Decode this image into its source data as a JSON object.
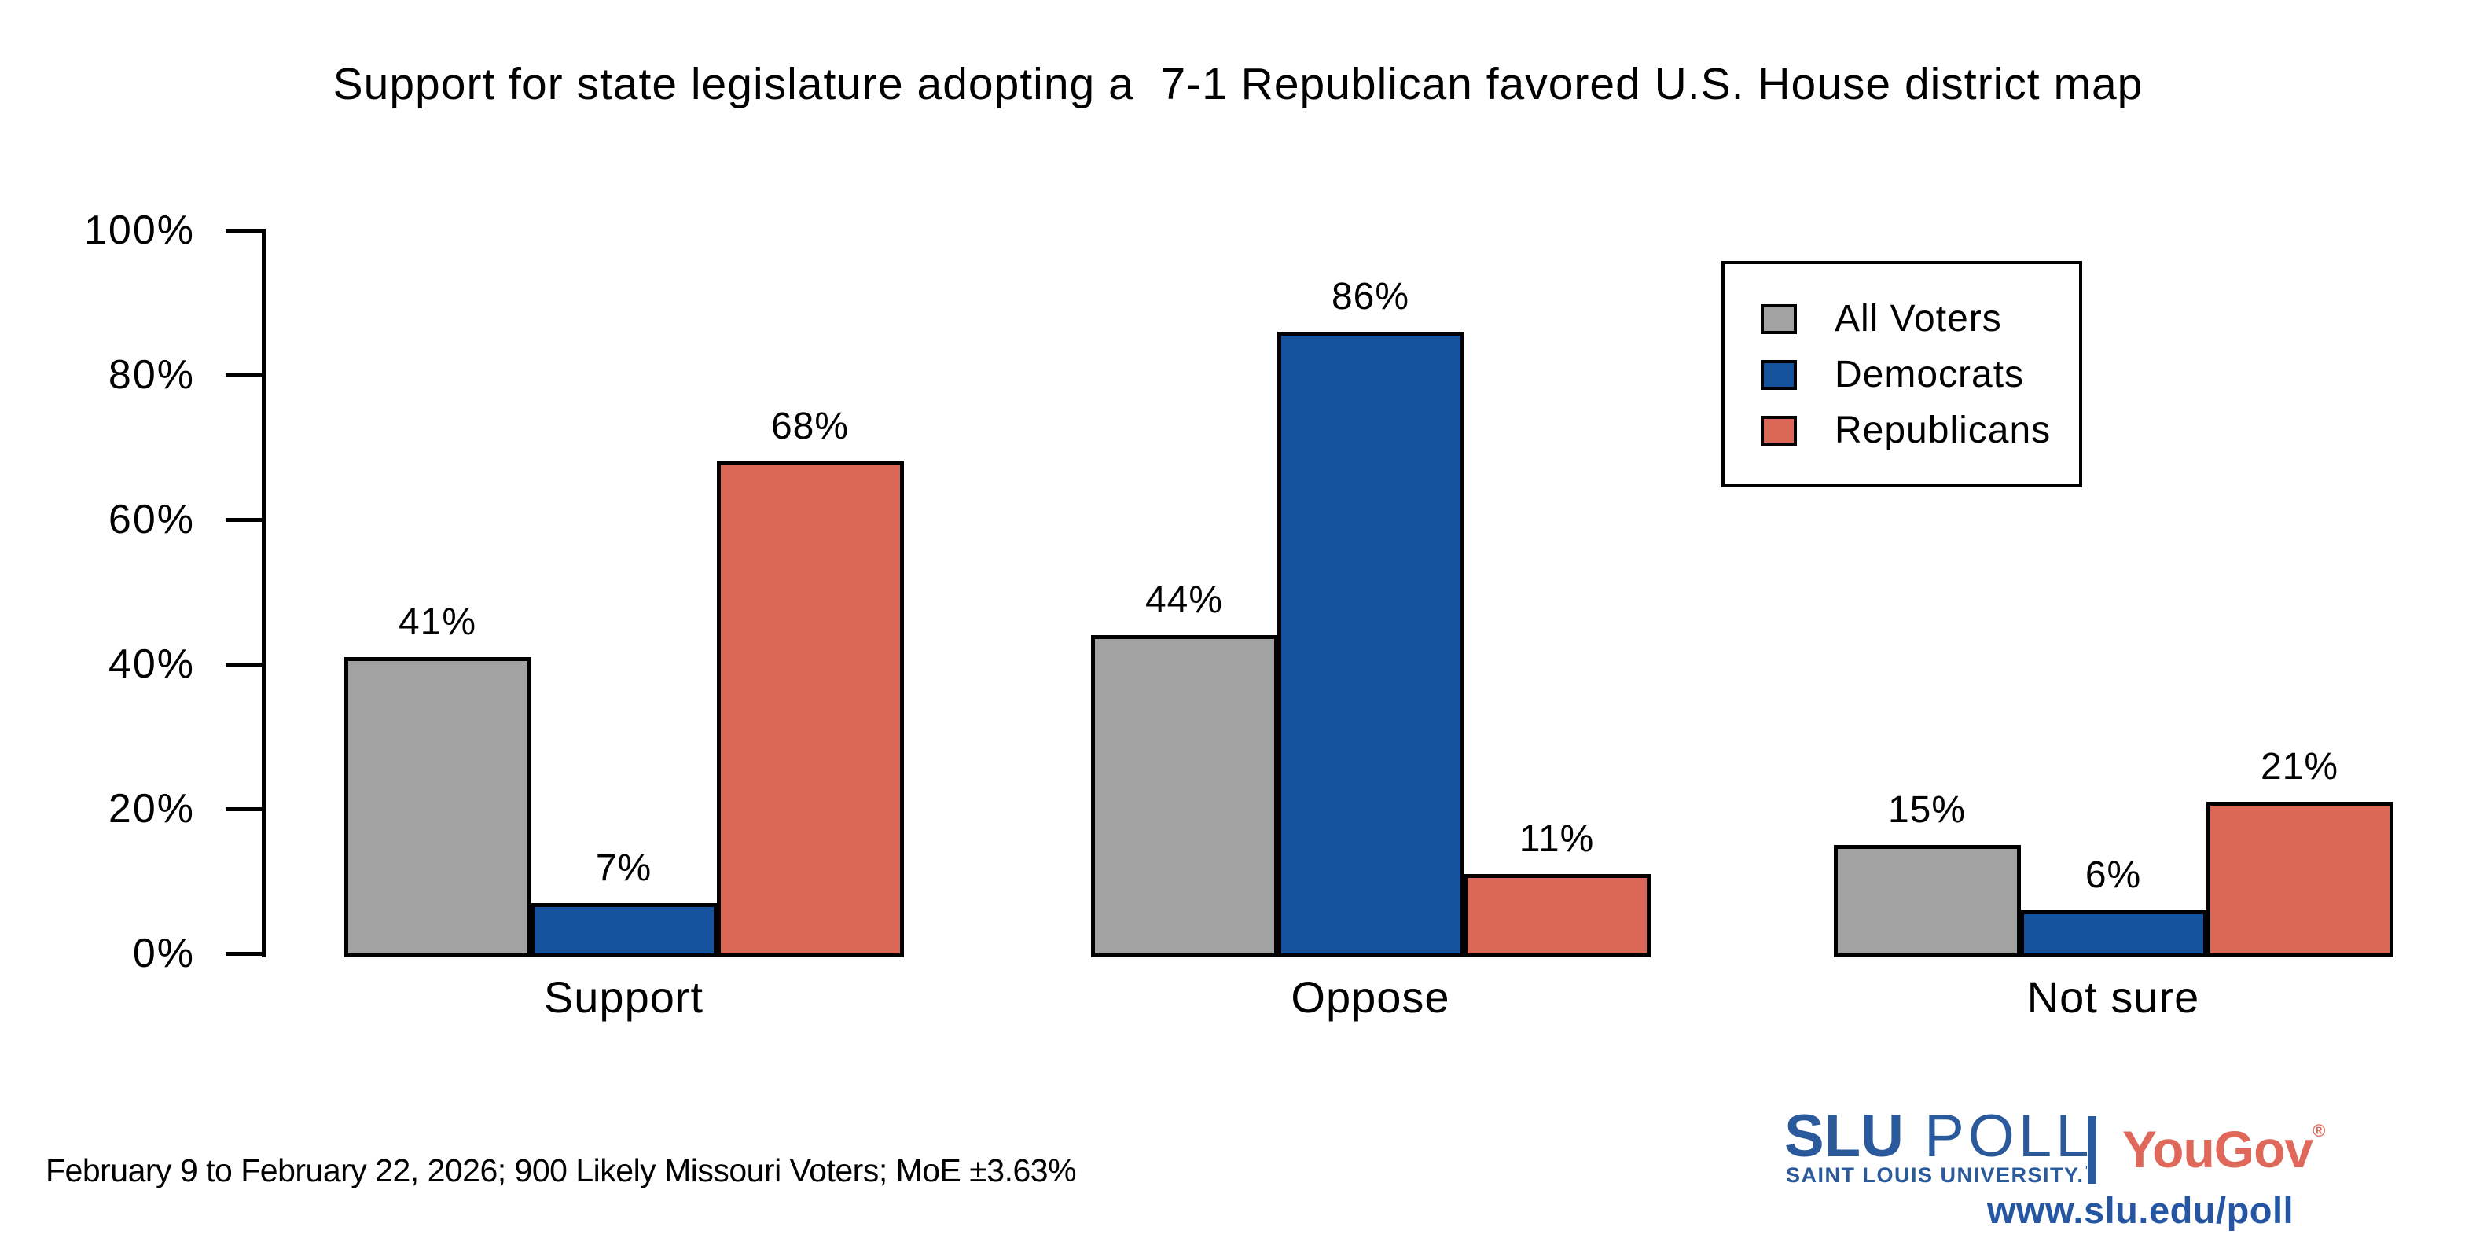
{
  "chart_data": {
    "type": "bar",
    "title": "Support for state legislature adopting a  7-1 Republican favored U.S. House district map",
    "categories": [
      "Support",
      "Oppose",
      "Not sure"
    ],
    "series": [
      {
        "name": "All Voters",
        "color_key": "all_voters",
        "values": [
          41,
          44,
          15
        ]
      },
      {
        "name": "Democrats",
        "color_key": "democrats",
        "values": [
          7,
          86,
          6
        ]
      },
      {
        "name": "Republicans",
        "color_key": "republicans",
        "values": [
          68,
          11,
          21
        ]
      }
    ],
    "value_suffix": "%",
    "ylim": [
      0,
      100
    ],
    "yticks": [
      "0%",
      "20%",
      "40%",
      "60%",
      "80%",
      "100%"
    ],
    "ytick_values": [
      0,
      20,
      40,
      60,
      80,
      100
    ],
    "grid": false,
    "legend_position": "upper right",
    "xlabel": "",
    "ylabel": ""
  },
  "colors": {
    "all_voters": "#A2A2A2",
    "democrats": "#15529E",
    "republicans": "#DB6757",
    "outline": "#000000",
    "slu_blue": "#2A5A9C",
    "yougov_red": "#E0685A",
    "url_blue": "#2456A4"
  },
  "footer": {
    "source_line": "February 9 to February 22, 2026; 900 Likely Missouri Voters; MoE ±3.63%"
  },
  "branding": {
    "slu": "SLU",
    "poll": " POLL",
    "subtitle": "SAINT LOUIS UNIVERSITY.",
    "trademark": "™",
    "yougov": "YouGov",
    "registered": "®",
    "url": "www.slu.edu/poll"
  }
}
